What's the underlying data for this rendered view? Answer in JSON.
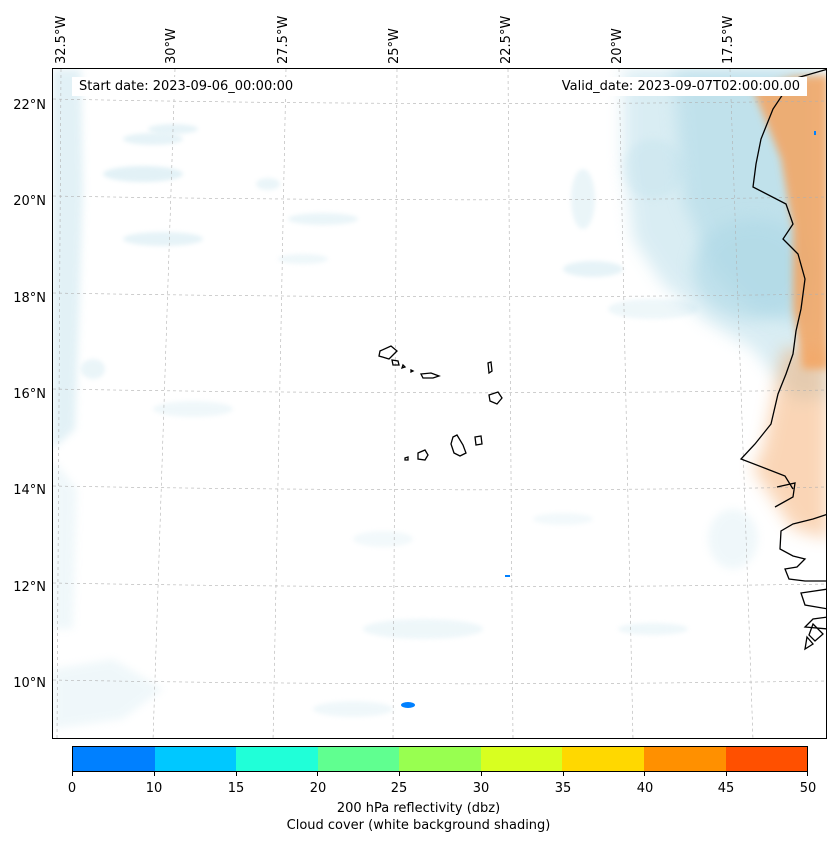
{
  "map": {
    "start_date": "Start date: 2023-09-06_00:00:00",
    "valid_date": "Valid_date: 2023-09-07T02:00:00.00",
    "lon_ticks": [
      "32.5°W",
      "30°W",
      "27.5°W",
      "25°W",
      "22.5°W",
      "20°W",
      "17.5°W"
    ],
    "lat_ticks": [
      "22°N",
      "20°N",
      "18°N",
      "16°N",
      "14°N",
      "12°N",
      "10°N"
    ]
  },
  "colorbar": {
    "ticks": [
      "0",
      "10",
      "15",
      "20",
      "25",
      "30",
      "35",
      "40",
      "45",
      "50"
    ],
    "colors": [
      "#0080ff",
      "#00c8ff",
      "#20ffd8",
      "#60ff90",
      "#98ff50",
      "#d8ff20",
      "#ffd800",
      "#ff9000",
      "#ff5000"
    ],
    "label_line1": "200 hPa reflectivity (dbz)",
    "label_line2": "Cloud cover (white background shading)"
  }
}
